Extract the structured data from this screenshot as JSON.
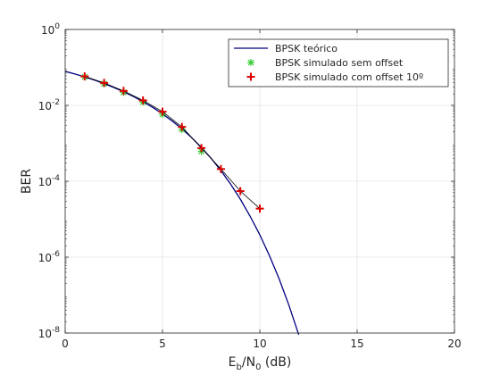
{
  "chart_data": {
    "type": "line",
    "xlabel": {
      "main": "E",
      "sub1": "b",
      "mid": "/N",
      "sub2": "0",
      "tail": " (dB)"
    },
    "ylabel": "BER",
    "xlim": [
      0,
      20
    ],
    "ylim": [
      1e-08,
      1
    ],
    "y_scale": "log",
    "grid": true,
    "legend_position": "top-right",
    "x_ticks": [
      0,
      5,
      10,
      15,
      20
    ],
    "y_ticks": [
      {
        "value": 1,
        "base": "10",
        "exp": "0"
      },
      {
        "value": 0.01,
        "base": "10",
        "exp": "-2"
      },
      {
        "value": 0.0001,
        "base": "10",
        "exp": "-4"
      },
      {
        "value": 1e-06,
        "base": "10",
        "exp": "-6"
      },
      {
        "value": 1e-08,
        "base": "10",
        "exp": "-8"
      }
    ],
    "series": [
      {
        "name": "BPSK teórico",
        "style": "line",
        "color": "#00007f",
        "x": [
          0,
          0.5,
          1,
          1.5,
          2,
          2.5,
          3,
          3.5,
          4,
          4.5,
          5,
          5.5,
          6,
          6.5,
          7,
          7.5,
          8,
          8.5,
          9,
          9.5,
          10,
          10.5,
          11,
          11.5,
          12
        ],
        "y": [
          0.0786,
          0.0671,
          0.0563,
          0.0464,
          0.0375,
          0.0296,
          0.0229,
          0.0172,
          0.0125,
          0.00881,
          0.00595,
          0.00386,
          0.00239,
          0.00141,
          0.000773,
          0.000401,
          0.000191,
          8.4e-05,
          3.36e-05,
          1.2e-05,
          3.87e-06,
          1.08e-06,
          2.61e-07,
          5.31e-08,
          9e-09
        ]
      },
      {
        "name": "BPSK simulado sem offset",
        "style": "markers",
        "marker": "asterisk",
        "color": "#33cc33",
        "x": [
          1,
          2,
          3,
          4,
          5,
          6,
          7
        ],
        "y": [
          0.056,
          0.037,
          0.022,
          0.0123,
          0.0058,
          0.0023,
          0.00061
        ]
      },
      {
        "name": "BPSK simulado com offset 10º",
        "style": "line+markers",
        "marker": "plus",
        "color": "#dd0000",
        "line_color": "#000000",
        "x": [
          1,
          2,
          3,
          4,
          5,
          6,
          7,
          8,
          9,
          10
        ],
        "y": [
          0.058,
          0.039,
          0.024,
          0.0135,
          0.0068,
          0.0027,
          0.00075,
          0.00021,
          5.5e-05,
          1.9e-05
        ]
      }
    ]
  }
}
